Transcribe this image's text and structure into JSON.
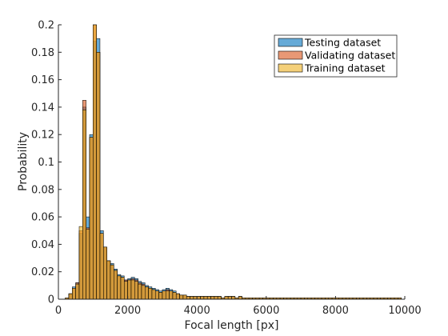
{
  "chart_data": {
    "type": "bar",
    "subtype": "overlaid-histogram",
    "xlabel": "Focal length [px]",
    "ylabel": "Probability",
    "xlim": [
      0,
      10000
    ],
    "ylim": [
      0,
      0.2
    ],
    "xticks": [
      0,
      2000,
      4000,
      6000,
      8000,
      10000
    ],
    "xtick_labels": [
      "0",
      "2000",
      "4000",
      "6000",
      "8000",
      "10000"
    ],
    "yticks": [
      0,
      0.02,
      0.04,
      0.06,
      0.08,
      0.1,
      0.12,
      0.14,
      0.16,
      0.18,
      0.2
    ],
    "ytick_labels": [
      "0",
      "0.02",
      "0.04",
      "0.06",
      "0.08",
      "0.1",
      "0.12",
      "0.14",
      "0.16",
      "0.18",
      "0.2"
    ],
    "grid": false,
    "legend_position": "top-right",
    "bin_width": 100,
    "bins_start": [
      200,
      300,
      400,
      500,
      600,
      700,
      800,
      900,
      1000,
      1100,
      1200,
      1300,
      1400,
      1500,
      1600,
      1700,
      1800,
      1900,
      2000,
      2100,
      2200,
      2300,
      2400,
      2500,
      2600,
      2700,
      2800,
      2900,
      3000,
      3100,
      3200,
      3300,
      3400,
      3500,
      3600,
      3700,
      3800,
      3900,
      4000,
      4100,
      4200,
      4300,
      4400,
      4500,
      4600,
      4700,
      4800,
      4900,
      5000,
      5100,
      5200,
      5300,
      5400,
      5500,
      5600,
      5700,
      5800,
      5900,
      6000,
      6100,
      6200,
      6300,
      6400,
      6500,
      6600,
      6700,
      6800,
      6900,
      7000,
      7100,
      7200,
      7300,
      7400,
      7500,
      7600,
      7700,
      7800,
      7900,
      8000,
      8100,
      8200,
      8300,
      8400,
      8500,
      8600,
      8700,
      8800,
      8900,
      9000,
      9100,
      9200,
      9300,
      9400,
      9500,
      9600,
      9700,
      9800
    ],
    "series": [
      {
        "name": "Testing dataset",
        "color": "#0072BD",
        "values": [
          0.001,
          0.004,
          0.009,
          0.012,
          0.048,
          0.14,
          0.06,
          0.12,
          0.188,
          0.19,
          0.05,
          0.038,
          0.028,
          0.026,
          0.022,
          0.018,
          0.017,
          0.014,
          0.015,
          0.016,
          0.015,
          0.013,
          0.012,
          0.01,
          0.009,
          0.008,
          0.007,
          0.006,
          0.007,
          0.008,
          0.007,
          0.006,
          0.004,
          0.003,
          0.003,
          0.002,
          0.002,
          0.002,
          0.002,
          0.002,
          0.002,
          0.002,
          0.002,
          0.002,
          0.002,
          0.001,
          0.002,
          0.002,
          0.002,
          0.001,
          0.002,
          0.001,
          0.001,
          0.001,
          0.001,
          0.001,
          0.001,
          0.001,
          0.001,
          0.001,
          0.001,
          0.001,
          0.001,
          0.001,
          0.001,
          0.001,
          0.001,
          0.001,
          0.001,
          0.001,
          0.001,
          0.001,
          0.001,
          0.001,
          0.001,
          0.001,
          0.001,
          0.001,
          0.001,
          0.001,
          0.001,
          0.001,
          0.001,
          0.001,
          0.001,
          0.001,
          0.001,
          0.001,
          0.001,
          0.001,
          0.001,
          0.001,
          0.001,
          0.001,
          0.001,
          0.001,
          0.001
        ]
      },
      {
        "name": "Validating dataset",
        "color": "#D95319",
        "values": [
          0.001,
          0.004,
          0.008,
          0.012,
          0.05,
          0.145,
          0.052,
          0.118,
          0.2,
          0.18,
          0.048,
          0.038,
          0.028,
          0.025,
          0.021,
          0.017,
          0.016,
          0.014,
          0.014,
          0.015,
          0.014,
          0.012,
          0.011,
          0.009,
          0.008,
          0.007,
          0.006,
          0.005,
          0.006,
          0.007,
          0.006,
          0.005,
          0.004,
          0.003,
          0.003,
          0.002,
          0.002,
          0.002,
          0.002,
          0.002,
          0.002,
          0.002,
          0.002,
          0.002,
          0.002,
          0.001,
          0.002,
          0.002,
          0.002,
          0.001,
          0.002,
          0.001,
          0.001,
          0.001,
          0.001,
          0.001,
          0.001,
          0.001,
          0.001,
          0.001,
          0.001,
          0.001,
          0.001,
          0.001,
          0.001,
          0.001,
          0.001,
          0.001,
          0.001,
          0.001,
          0.001,
          0.001,
          0.001,
          0.001,
          0.001,
          0.001,
          0.001,
          0.001,
          0.001,
          0.001,
          0.001,
          0.001,
          0.001,
          0.001,
          0.001,
          0.001,
          0.001,
          0.001,
          0.001,
          0.001,
          0.001,
          0.001,
          0.001,
          0.001,
          0.001,
          0.001,
          0.001
        ]
      },
      {
        "name": "Training dataset",
        "color": "#EDB120",
        "values": [
          0.001,
          0.004,
          0.008,
          0.011,
          0.053,
          0.138,
          0.051,
          0.118,
          0.2,
          0.18,
          0.048,
          0.038,
          0.028,
          0.025,
          0.021,
          0.017,
          0.016,
          0.013,
          0.014,
          0.014,
          0.013,
          0.011,
          0.01,
          0.009,
          0.008,
          0.007,
          0.006,
          0.005,
          0.006,
          0.006,
          0.006,
          0.005,
          0.004,
          0.003,
          0.003,
          0.002,
          0.002,
          0.002,
          0.002,
          0.002,
          0.002,
          0.002,
          0.002,
          0.002,
          0.002,
          0.001,
          0.002,
          0.002,
          0.002,
          0.001,
          0.002,
          0.001,
          0.001,
          0.001,
          0.001,
          0.001,
          0.001,
          0.001,
          0.001,
          0.001,
          0.001,
          0.001,
          0.001,
          0.001,
          0.001,
          0.001,
          0.001,
          0.001,
          0.001,
          0.001,
          0.001,
          0.001,
          0.001,
          0.001,
          0.001,
          0.001,
          0.001,
          0.001,
          0.001,
          0.001,
          0.001,
          0.001,
          0.001,
          0.001,
          0.001,
          0.001,
          0.001,
          0.001,
          0.001,
          0.001,
          0.001,
          0.001,
          0.001,
          0.001,
          0.001,
          0.001,
          0.001
        ]
      }
    ]
  }
}
